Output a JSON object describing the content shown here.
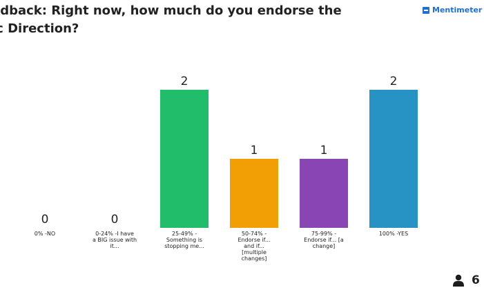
{
  "title": "edback: Right now, how much do you endorse the\nic Direction?",
  "brand": {
    "name": "Mentimeter",
    "color": "#1f6fd6"
  },
  "participants": {
    "count": "6",
    "icon": "person-icon"
  },
  "chart_data": {
    "type": "bar",
    "categories": [
      "0% -NO",
      "0-24% -I have\na BIG issue with\nit...",
      "25-49% -\nSomething is\nstopping me...",
      "50-74% -\nEndorse if...\nand if...\n[multiple\nchanges]",
      "75-99% -\nEndorse if... [a\nchange]",
      "100% -YES"
    ],
    "values": [
      0,
      0,
      2,
      1,
      1,
      2
    ],
    "colors": [
      "#1a5cc4",
      "#2b7bd8",
      "#21bd6a",
      "#f29f05",
      "#8845b3",
      "#2793c4"
    ],
    "ylim": [
      0,
      2
    ],
    "grid": false,
    "legend": "none"
  }
}
